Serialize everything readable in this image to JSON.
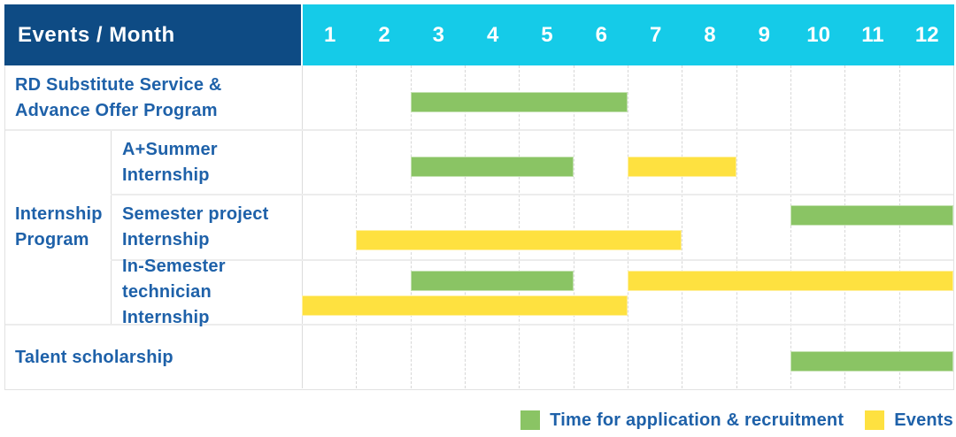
{
  "header": {
    "label": "Events / Month",
    "months": [
      "1",
      "2",
      "3",
      "4",
      "5",
      "6",
      "7",
      "8",
      "9",
      "10",
      "11",
      "12"
    ]
  },
  "legend": {
    "items": [
      {
        "label": "Time for application & recruitment",
        "series": "application",
        "color": "#8ac464"
      },
      {
        "label": "Events",
        "series": "event",
        "color": "#fee140"
      }
    ]
  },
  "colors": {
    "header_navy": "#0e4b84",
    "header_cyan": "#15cbe8",
    "label_blue": "#1e61a9",
    "application_green": "#8ac464",
    "event_yellow": "#fee140"
  },
  "chart_data": {
    "type": "gantt",
    "corner_label": "Events / Month",
    "x_axis": {
      "label": "Month",
      "ticks": [
        1,
        2,
        3,
        4,
        5,
        6,
        7,
        8,
        9,
        10,
        11,
        12
      ]
    },
    "series": [
      {
        "key": "application",
        "name": "Time for application & recruitment",
        "color": "#8ac464"
      },
      {
        "key": "event",
        "name": "Events",
        "color": "#fee140"
      }
    ],
    "rows": [
      {
        "group": "",
        "label": "RD Substitute Service &\nAdvance Offer Program",
        "bars": [
          {
            "series": "application",
            "start_month": 3,
            "end_month": 6,
            "line": "single"
          }
        ]
      },
      {
        "group": "Internship\nProgram",
        "label": "A+Summer\nInternship",
        "bars": [
          {
            "series": "application",
            "start_month": 3,
            "end_month": 5,
            "line": "single"
          },
          {
            "series": "event",
            "start_month": 7,
            "end_month": 8,
            "line": "single"
          }
        ]
      },
      {
        "group": "Internship\nProgram",
        "label": "Semester project\nInternship",
        "bars": [
          {
            "series": "application",
            "start_month": 10,
            "end_month": 12,
            "line": "top"
          },
          {
            "series": "event",
            "start_month": 2,
            "end_month": 7,
            "line": "bottom"
          }
        ]
      },
      {
        "group": "Internship\nProgram",
        "label": "In-Semester\ntechnician Internship",
        "bars": [
          {
            "series": "application",
            "start_month": 3,
            "end_month": 5,
            "line": "top"
          },
          {
            "series": "event",
            "start_month": 7,
            "end_month": 12,
            "line": "top"
          },
          {
            "series": "event",
            "start_month": 1,
            "end_month": 6,
            "line": "bottom"
          }
        ]
      },
      {
        "group": "",
        "label": "Talent scholarship",
        "bars": [
          {
            "series": "application",
            "start_month": 10,
            "end_month": 12,
            "line": "single"
          }
        ]
      }
    ]
  }
}
